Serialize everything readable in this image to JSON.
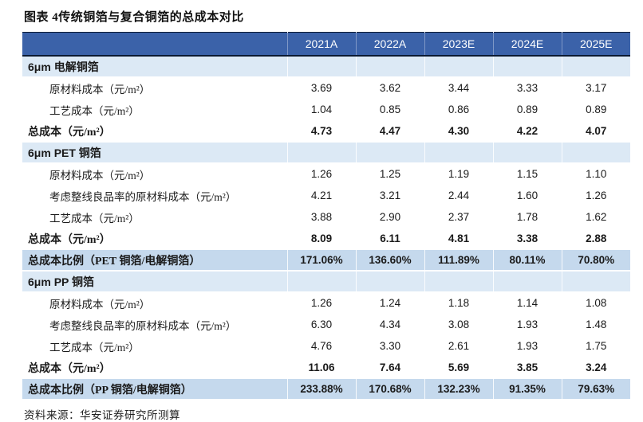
{
  "title": "图表 4传统铜箔与复合铜箔的总成本对比",
  "source": "资料来源：华安证券研究所测算",
  "colors": {
    "header_bg": "#3b62a9",
    "header_text": "#ffffff",
    "section_row_bg": "#dce9f5",
    "ratio_row_bg": "#c5d9ed",
    "border_dark": "#0b1a33"
  },
  "table": {
    "columns": [
      "2021A",
      "2022A",
      "2023E",
      "2024E",
      "2025E"
    ],
    "rows": [
      {
        "type": "section",
        "label": "6μm 电解铜箔",
        "values": [
          "",
          "",
          "",
          "",
          ""
        ]
      },
      {
        "type": "data",
        "label": "原材料成本（元/m²）",
        "values": [
          "3.69",
          "3.62",
          "3.44",
          "3.33",
          "3.17"
        ]
      },
      {
        "type": "data",
        "label": "工艺成本（元/m²）",
        "values": [
          "1.04",
          "0.85",
          "0.86",
          "0.89",
          "0.89"
        ]
      },
      {
        "type": "total",
        "label": "总成本（元/m²）",
        "values": [
          "4.73",
          "4.47",
          "4.30",
          "4.22",
          "4.07"
        ]
      },
      {
        "type": "section",
        "label": "6μm PET 铜箔",
        "values": [
          "",
          "",
          "",
          "",
          ""
        ]
      },
      {
        "type": "data",
        "label": "原材料成本（元/m²）",
        "values": [
          "1.26",
          "1.25",
          "1.19",
          "1.15",
          "1.10"
        ]
      },
      {
        "type": "data",
        "label": "考虑整线良品率的原材料成本（元/m²）",
        "values": [
          "4.21",
          "3.21",
          "2.44",
          "1.60",
          "1.26"
        ]
      },
      {
        "type": "data",
        "label": "工艺成本（元/m²）",
        "values": [
          "3.88",
          "2.90",
          "2.37",
          "1.78",
          "1.62"
        ]
      },
      {
        "type": "total",
        "label": "总成本（元/m²）",
        "values": [
          "8.09",
          "6.11",
          "4.81",
          "3.38",
          "2.88"
        ]
      },
      {
        "type": "ratio",
        "label": "总成本比例（PET 铜箔/电解铜箔）",
        "values": [
          "171.06%",
          "136.60%",
          "111.89%",
          "80.11%",
          "70.80%"
        ]
      },
      {
        "type": "section",
        "label": "6μm PP 铜箔",
        "values": [
          "",
          "",
          "",
          "",
          ""
        ]
      },
      {
        "type": "data",
        "label": "原材料成本（元/m²）",
        "values": [
          "1.26",
          "1.24",
          "1.18",
          "1.14",
          "1.08"
        ]
      },
      {
        "type": "data",
        "label": "考虑整线良品率的原材料成本（元/m²）",
        "values": [
          "6.30",
          "4.34",
          "3.08",
          "1.93",
          "1.48"
        ]
      },
      {
        "type": "data",
        "label": "工艺成本（元/m²）",
        "values": [
          "4.76",
          "3.30",
          "2.61",
          "1.93",
          "1.75"
        ]
      },
      {
        "type": "total",
        "label": "总成本（元/m²）",
        "values": [
          "11.06",
          "7.64",
          "5.69",
          "3.85",
          "3.24"
        ]
      },
      {
        "type": "ratio",
        "label": "总成本比例（PP 铜箔/电解铜箔）",
        "values": [
          "233.88%",
          "170.68%",
          "132.23%",
          "91.35%",
          "79.63%"
        ]
      }
    ]
  }
}
